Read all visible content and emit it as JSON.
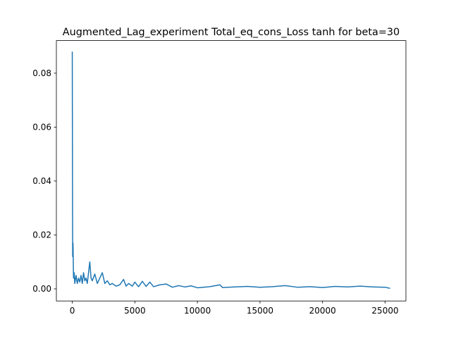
{
  "chart_data": {
    "type": "line",
    "title": "Augmented_Lag_experiment Total_eq_cons_Loss tanh for beta=30",
    "x": [
      0,
      30,
      60,
      100,
      150,
      200,
      300,
      400,
      500,
      600,
      700,
      800,
      900,
      1000,
      1100,
      1200,
      1300,
      1400,
      1500,
      1600,
      1800,
      2000,
      2200,
      2400,
      2600,
      2800,
      3000,
      3200,
      3500,
      3800,
      4100,
      4300,
      4500,
      4800,
      5000,
      5300,
      5600,
      5900,
      6200,
      6500,
      7000,
      7500,
      8000,
      8500,
      9000,
      9500,
      10000,
      11000,
      11800,
      12000,
      13000,
      14000,
      15000,
      16000,
      17000,
      18000,
      19000,
      20000,
      21000,
      22000,
      23000,
      24000,
      25000,
      25390
    ],
    "series": [
      {
        "name": "Total_eq_cons_Loss",
        "color": "#1f77b4",
        "values": [
          0.088,
          0.012,
          0.017,
          0.004,
          0.006,
          0.002,
          0.005,
          0.002,
          0.004,
          0.0025,
          0.005,
          0.002,
          0.006,
          0.003,
          0.004,
          0.002,
          0.006,
          0.01,
          0.004,
          0.003,
          0.0055,
          0.002,
          0.004,
          0.006,
          0.002,
          0.003,
          0.0015,
          0.002,
          0.001,
          0.0015,
          0.0035,
          0.001,
          0.002,
          0.001,
          0.0025,
          0.0008,
          0.0028,
          0.0009,
          0.0025,
          0.0008,
          0.0015,
          0.0018,
          0.0006,
          0.0012,
          0.0007,
          0.0011,
          0.0004,
          0.0008,
          0.0015,
          0.0005,
          0.0007,
          0.0009,
          0.0006,
          0.0008,
          0.0012,
          0.0006,
          0.0008,
          0.0005,
          0.0009,
          0.0007,
          0.001,
          0.0007,
          0.0006,
          0.0002
        ]
      }
    ],
    "xlim": [
      -1270,
      26660
    ],
    "ylim": [
      -0.0045,
      0.0921
    ],
    "xticks": [
      0,
      5000,
      10000,
      15000,
      20000,
      25000
    ],
    "yticks": [
      {
        "value": 0,
        "label": "0.00"
      },
      {
        "value": 0.02,
        "label": "0.02"
      },
      {
        "value": 0.04,
        "label": "0.04"
      },
      {
        "value": 0.06,
        "label": "0.06"
      },
      {
        "value": 0.08,
        "label": "0.08"
      }
    ]
  }
}
